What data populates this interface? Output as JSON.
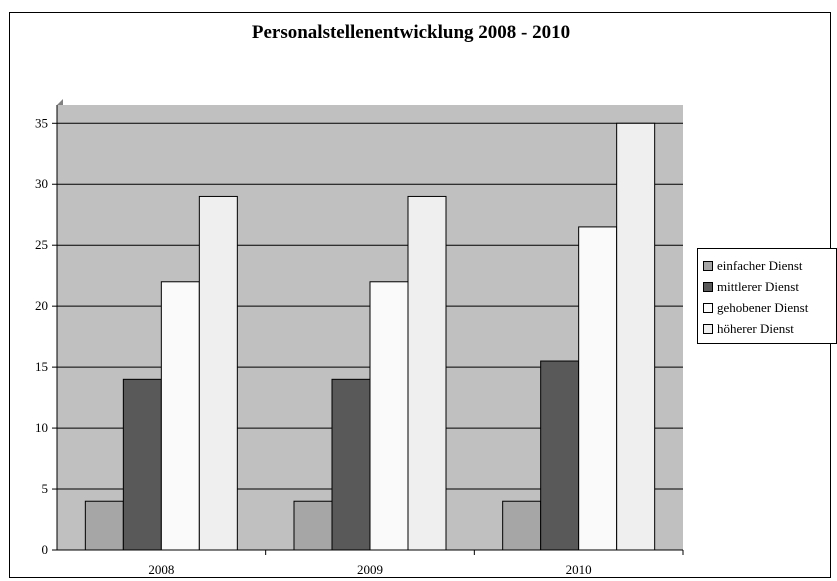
{
  "chart_data": {
    "type": "bar",
    "title": "Personalstellenentwicklung 2008 - 2010",
    "categories": [
      "2008",
      "2009",
      "2010"
    ],
    "series": [
      {
        "name": "einfacher Dienst",
        "color": "#a6a6a6",
        "values": [
          4,
          4,
          4
        ]
      },
      {
        "name": "mittlerer Dienst",
        "color": "#595959",
        "values": [
          14,
          14,
          15.5
        ]
      },
      {
        "name": "gehobener Dienst",
        "color": "#fafafa",
        "values": [
          22,
          22,
          26.5
        ]
      },
      {
        "name": "höherer Dienst",
        "color": "#efefef",
        "values": [
          29,
          29,
          35
        ]
      }
    ],
    "ylim": [
      0,
      35
    ],
    "yticks": [
      0,
      5,
      10,
      15,
      20,
      25,
      30,
      35
    ],
    "grid": true,
    "plot_background": "#c0c0c0",
    "legend_position": "right"
  }
}
